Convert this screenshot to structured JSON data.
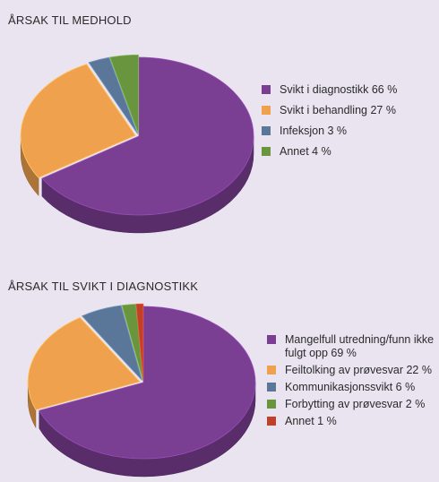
{
  "chart_data": [
    {
      "type": "pie",
      "title": "ÅRSAK TIL MEDHOLD",
      "categories": [
        "Svikt i diagnostikk 66 %",
        "Svikt i behandling 27 %",
        "Infeksjon 3 %",
        "Annet 4 %"
      ],
      "values": [
        66,
        27,
        3,
        4
      ],
      "colors": [
        "#7a3e93",
        "#f0a14e",
        "#5a7799",
        "#69953f"
      ],
      "legend_position": "right"
    },
    {
      "type": "pie",
      "title": "ÅRSAK TIL SVIKT I DIAGNOSTIKK",
      "categories": [
        "Mangelfull utredning/funn ikke fulgt opp 69 %",
        "Feiltolking av prøvesvar 22 %",
        "Kommunikasjonssvikt 6 %",
        "Forbytting av prøvesvar 2 %",
        "Annet 1 %"
      ],
      "values": [
        69,
        22,
        6,
        2,
        1
      ],
      "colors": [
        "#7a3e93",
        "#f0a14e",
        "#5a7799",
        "#69953f",
        "#c0412a"
      ],
      "legend_position": "right"
    }
  ]
}
